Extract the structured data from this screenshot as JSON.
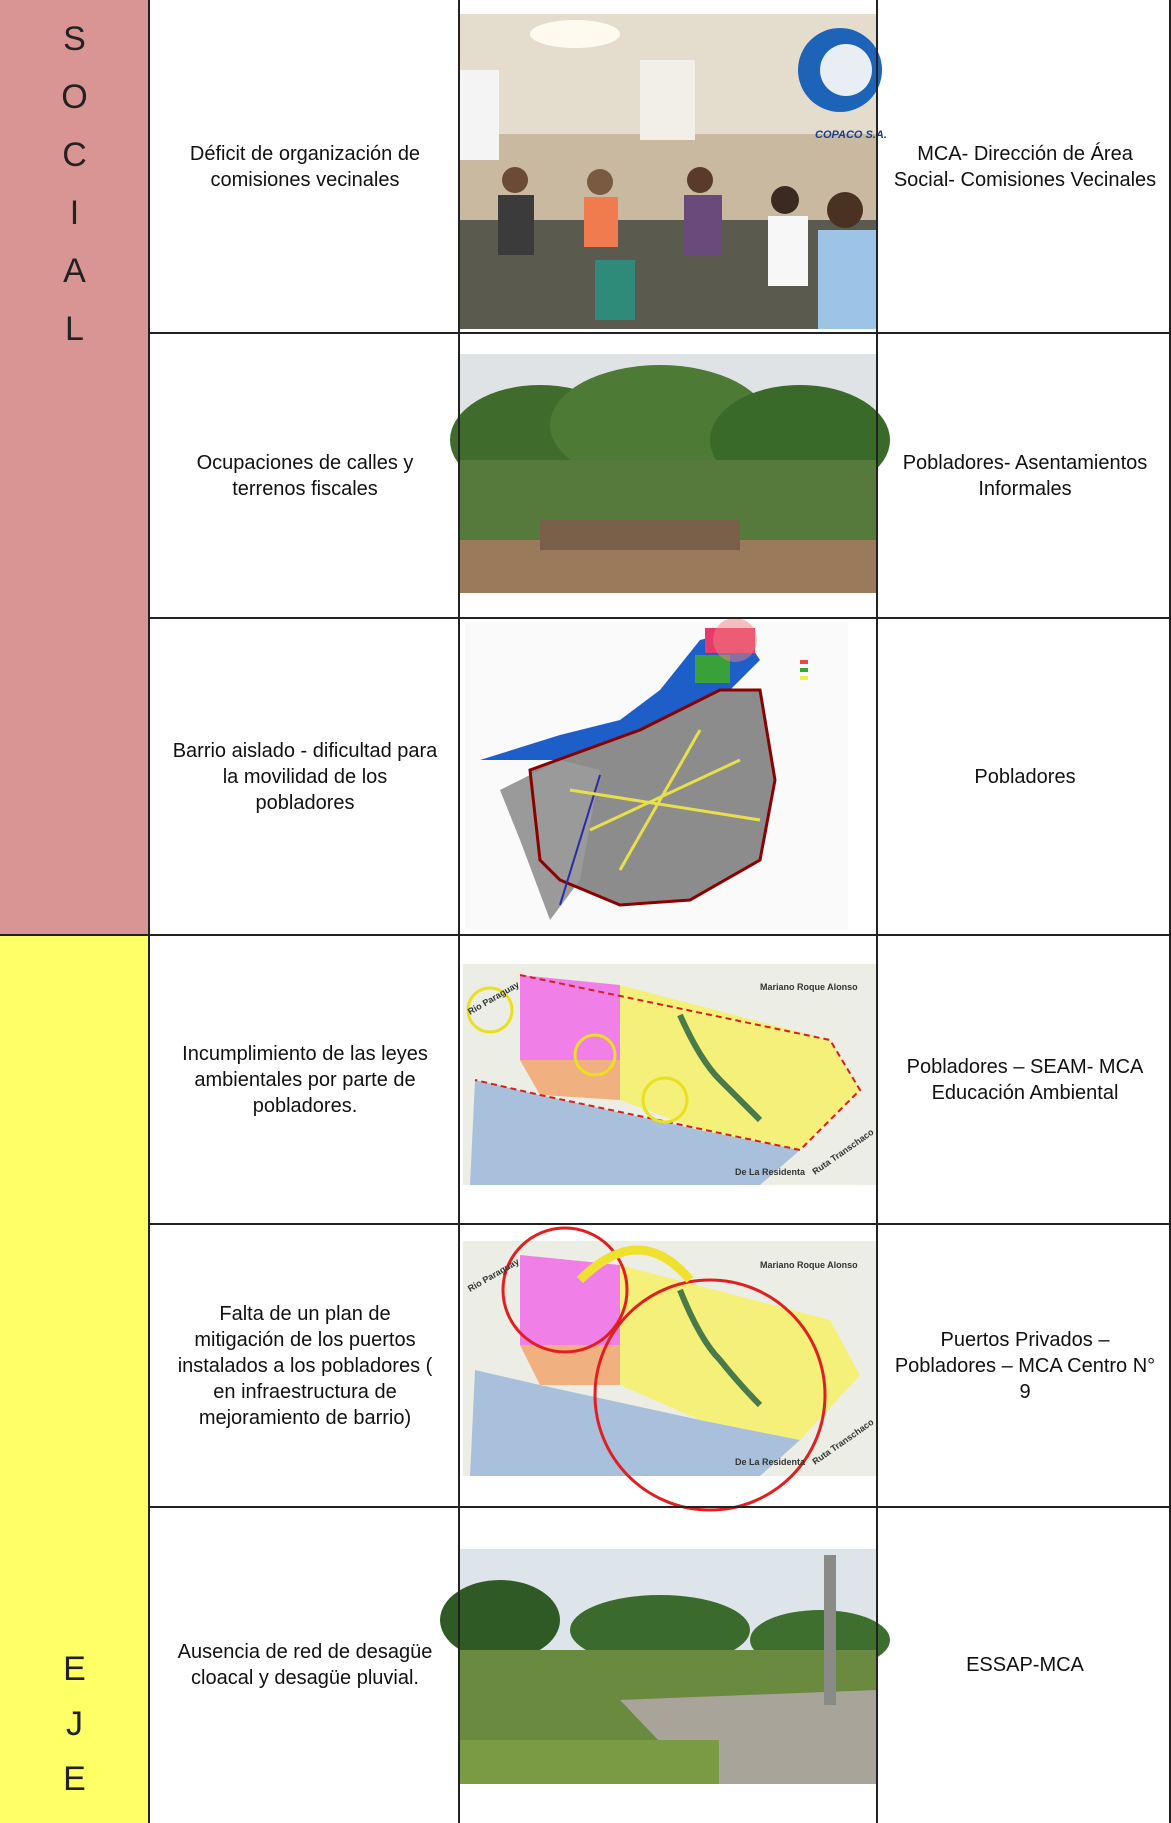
{
  "sections": [
    {
      "letters": [
        "S",
        "O",
        "C",
        "I",
        "A",
        "L"
      ]
    },
    {
      "letters": [
        "E",
        "J",
        "E"
      ]
    }
  ],
  "rows": [
    {
      "problem": "Déficit de organización de comisiones vecinales",
      "actors": "MCA- Dirección de Área Social- Comisiones Vecinales"
    },
    {
      "problem": "Ocupaciones de calles y terrenos fiscales",
      "actors": "Pobladores- Asentamientos Informales"
    },
    {
      "problem": "Barrio aislado - dificultad para la movilidad de los pobladores",
      "actors": "Pobladores"
    },
    {
      "problem": "Incumplimiento de las leyes ambientales por parte de pobladores.",
      "actors": "Pobladores – SEAM- MCA Educación Ambiental"
    },
    {
      "problem": "Falta de un plan de mitigación de los puertos instalados a los pobladores ( en infraestructura de mejoramiento de barrio)",
      "actors": "Puertos Privados – Pobladores – MCA Centro N° 9"
    },
    {
      "problem": "Ausencia de  red de desagüe cloacal y desagüe pluvial.",
      "actors": "ESSAP-MCA"
    }
  ],
  "images": {
    "photo_sign": "COPACO S.A.",
    "map_labels": [
      "Mariano Roque Alonso",
      "Rio Paraguay",
      "De La Residenta",
      "Ruta Transchaco"
    ]
  }
}
